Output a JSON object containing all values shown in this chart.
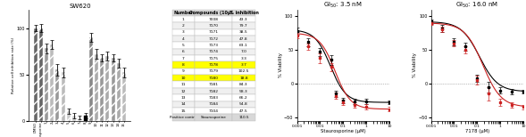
{
  "title_bar": "SW620",
  "bar_categories": [
    "DMSO",
    "Staurosporine",
    "1",
    "2",
    "3",
    "4",
    "5",
    "6",
    "7",
    "8",
    "9",
    "10",
    "11",
    "12",
    "13",
    "14",
    "15"
  ],
  "bar_values": [
    100,
    100,
    78,
    82,
    55,
    52,
    10,
    5,
    3,
    5,
    90,
    72,
    68,
    70,
    68,
    62,
    52
  ],
  "bar_errors": [
    3,
    4,
    5,
    5,
    6,
    5,
    3,
    3,
    2,
    3,
    5,
    5,
    4,
    5,
    4,
    5,
    5
  ],
  "bar_ylabel": "Relative cell inhibition rate (%)",
  "table_header": [
    "Number",
    "Compounds (10μM)",
    "% inhibition"
  ],
  "table_numbers": [
    "1",
    "2",
    "3",
    "4",
    "5",
    "6",
    "7",
    "8",
    "9",
    "10",
    "11",
    "12",
    "13",
    "14",
    "15",
    "Positive control"
  ],
  "table_compounds": [
    "7008",
    "7170",
    "7171",
    "7172",
    "7173",
    "7174",
    "7175",
    "7178",
    "7179",
    "7180",
    "7181",
    "7182",
    "7183",
    "7184",
    "7104",
    "Staurosporine"
  ],
  "table_inhibitions": [
    "43.3",
    "79.7",
    "38.5",
    "47.8",
    "63.1",
    "7.0",
    "3.3",
    "3.7",
    "102.5",
    "18.8",
    "84.3",
    "58.3",
    "66.2",
    "54.8",
    "47.5",
    "110.5"
  ],
  "highlighted_rows": [
    8,
    10
  ],
  "gi50_title1": "GI$_{50}$: 3.5 nM",
  "gi50_title2": "GI$_{50}$: 16.0 nM",
  "xlabel1": "Staurosporine (μM)",
  "xlabel2": "7178 (μM)",
  "ylabel_curves": "% Viability",
  "curve1_x": [
    0.001,
    0.003,
    0.01,
    0.03,
    0.05,
    0.1,
    0.3,
    1.0,
    10.0
  ],
  "curve1_y_black": [
    78,
    62,
    47,
    35,
    -15,
    -25,
    -27,
    -27,
    -28
  ],
  "curve1_y_red": [
    72,
    55,
    38,
    25,
    -18,
    -28,
    -32,
    -35,
    -38
  ],
  "curve1_err_black": [
    5,
    6,
    6,
    7,
    5,
    4,
    4,
    4,
    3
  ],
  "curve1_err_red": [
    5,
    5,
    7,
    6,
    5,
    4,
    4,
    4,
    3
  ],
  "curve2_x": [
    0.001,
    0.003,
    0.01,
    0.03,
    0.1,
    0.3,
    1.0,
    3.0,
    10.0
  ],
  "curve2_y_black": [
    92,
    82,
    62,
    55,
    8,
    -5,
    -10,
    -12,
    -12
  ],
  "curve2_y_red": [
    90,
    80,
    60,
    50,
    5,
    -15,
    -28,
    -32,
    -35
  ],
  "curve2_err_black": [
    3,
    5,
    5,
    6,
    5,
    8,
    4,
    4,
    3
  ],
  "curve2_err_red": [
    3,
    4,
    5,
    5,
    7,
    10,
    5,
    4,
    3
  ],
  "ylim_curves": [
    -55,
    110
  ],
  "yticks_curves": [
    -50,
    0,
    50,
    100
  ],
  "xticks_curves": [
    0.001,
    0.01,
    0.1,
    1,
    10
  ],
  "xticklabels_curves": [
    "0.001",
    "0.01",
    "0.1",
    "1",
    "10"
  ],
  "background_color": "#ffffff",
  "highlight_color": "#ffff00",
  "table_header_color": "#d8d8d8",
  "table_alt_color": "#f0f0f0",
  "table_posctrl_color": "#d8d8d8",
  "bar_colors": [
    "#666666",
    "#666666",
    "#999999",
    "#bbbbbb",
    "#999999",
    "#bbbbbb",
    "#cccccc",
    "#cccccc",
    "#cccccc",
    "#000000",
    "#888888",
    "#aaaaaa",
    "#999999",
    "#aaaaaa",
    "#999999",
    "#aaaaaa",
    "#bbbbbb"
  ],
  "curve_black": "#000000",
  "curve_red": "#cc2222"
}
